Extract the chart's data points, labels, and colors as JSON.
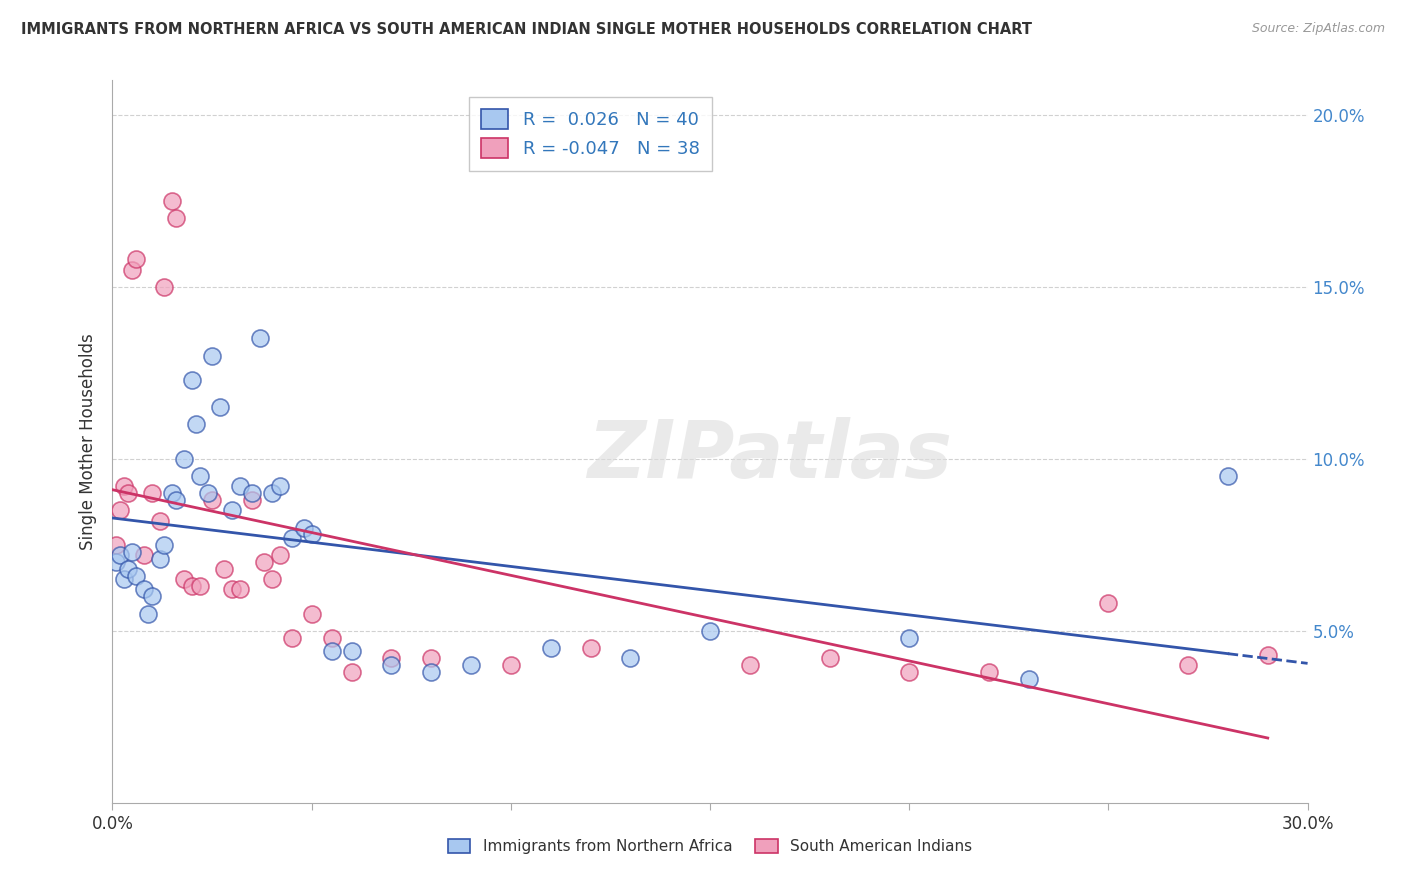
{
  "title": "IMMIGRANTS FROM NORTHERN AFRICA VS SOUTH AMERICAN INDIAN SINGLE MOTHER HOUSEHOLDS CORRELATION CHART",
  "source": "Source: ZipAtlas.com",
  "ylabel": "Single Mother Households",
  "xlabel_blue": "Immigrants from Northern Africa",
  "xlabel_pink": "South American Indians",
  "xlim": [
    0.0,
    0.3
  ],
  "ylim": [
    0.0,
    0.21
  ],
  "xticks": [
    0.0,
    0.05,
    0.1,
    0.15,
    0.2,
    0.25,
    0.3
  ],
  "yticks": [
    0.0,
    0.05,
    0.1,
    0.15,
    0.2
  ],
  "R_blue": 0.026,
  "N_blue": 40,
  "R_pink": -0.047,
  "N_pink": 38,
  "blue_color": "#A8C8F0",
  "pink_color": "#F0A0BC",
  "trend_blue": "#3355AA",
  "trend_pink": "#CC3366",
  "blue_scatter_x": [
    0.001,
    0.002,
    0.003,
    0.004,
    0.005,
    0.006,
    0.008,
    0.009,
    0.01,
    0.012,
    0.013,
    0.015,
    0.016,
    0.018,
    0.02,
    0.021,
    0.022,
    0.024,
    0.025,
    0.027,
    0.03,
    0.032,
    0.035,
    0.037,
    0.04,
    0.042,
    0.045,
    0.048,
    0.05,
    0.055,
    0.06,
    0.07,
    0.08,
    0.09,
    0.11,
    0.13,
    0.15,
    0.2,
    0.23,
    0.28
  ],
  "blue_scatter_y": [
    0.07,
    0.072,
    0.065,
    0.068,
    0.073,
    0.066,
    0.062,
    0.055,
    0.06,
    0.071,
    0.075,
    0.09,
    0.088,
    0.1,
    0.123,
    0.11,
    0.095,
    0.09,
    0.13,
    0.115,
    0.085,
    0.092,
    0.09,
    0.135,
    0.09,
    0.092,
    0.077,
    0.08,
    0.078,
    0.044,
    0.044,
    0.04,
    0.038,
    0.04,
    0.045,
    0.042,
    0.05,
    0.048,
    0.036,
    0.095
  ],
  "pink_scatter_x": [
    0.001,
    0.002,
    0.003,
    0.004,
    0.005,
    0.006,
    0.008,
    0.01,
    0.012,
    0.013,
    0.015,
    0.016,
    0.018,
    0.02,
    0.022,
    0.025,
    0.028,
    0.03,
    0.032,
    0.035,
    0.038,
    0.04,
    0.042,
    0.045,
    0.05,
    0.055,
    0.06,
    0.07,
    0.08,
    0.1,
    0.12,
    0.16,
    0.18,
    0.2,
    0.22,
    0.25,
    0.27,
    0.29
  ],
  "pink_scatter_y": [
    0.075,
    0.085,
    0.092,
    0.09,
    0.155,
    0.158,
    0.072,
    0.09,
    0.082,
    0.15,
    0.175,
    0.17,
    0.065,
    0.063,
    0.063,
    0.088,
    0.068,
    0.062,
    0.062,
    0.088,
    0.07,
    0.065,
    0.072,
    0.048,
    0.055,
    0.048,
    0.038,
    0.042,
    0.042,
    0.04,
    0.045,
    0.04,
    0.042,
    0.038,
    0.038,
    0.058,
    0.04,
    0.043
  ],
  "watermark": "ZIPatlas",
  "background_color": "#FFFFFF",
  "grid_color": "#CCCCCC"
}
